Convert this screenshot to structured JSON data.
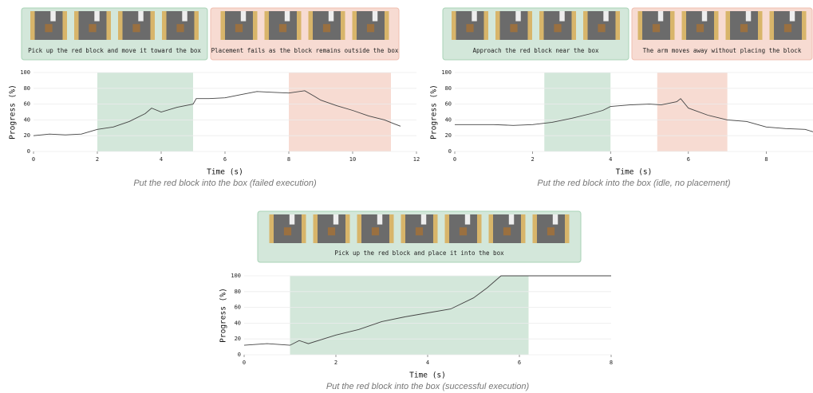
{
  "chart_data": [
    {
      "type": "line",
      "title": "Put the red block into the box (failed execution)",
      "x_label": "Time (s)",
      "y_label": "Progress (%)",
      "x": [
        0,
        0.5,
        1,
        1.5,
        2,
        2.5,
        3,
        3.5,
        3.7,
        4,
        4.5,
        5,
        5.1,
        5.5,
        6,
        6.5,
        7,
        7.5,
        8,
        8.5,
        8.8,
        9,
        9.5,
        10,
        10.5,
        11,
        11.3,
        11.5
      ],
      "series": [
        {
          "color": "#444444",
          "values": [
            20,
            22,
            21,
            22,
            28,
            31,
            38,
            48,
            55,
            50,
            56,
            60,
            67,
            67,
            68,
            72,
            76,
            75,
            74,
            77,
            70,
            65,
            58,
            52,
            45,
            40,
            35,
            32
          ]
        }
      ],
      "xlim": [
        0,
        12
      ],
      "ylim": [
        0,
        100
      ],
      "xticks": [
        0,
        2,
        4,
        6,
        8,
        10,
        12
      ],
      "yticks": [
        0,
        20,
        40,
        60,
        80,
        100
      ],
      "grid": true,
      "highlights": [
        {
          "start": 2,
          "end": 5,
          "color": "#d3e7da",
          "label": "Pick up the red block and move it toward the box"
        },
        {
          "start": 8,
          "end": 11.2,
          "color": "#f7dbd2",
          "label": "Placement fails as the block remains outside the box"
        }
      ]
    },
    {
      "type": "line",
      "title": "Put the red block into the box (idle, no placement)",
      "x_label": "Time (s)",
      "y_label": "Progress (%)",
      "x": [
        0,
        0.5,
        1,
        1.5,
        2,
        2.5,
        3,
        3.5,
        3.8,
        4,
        4.5,
        5,
        5.3,
        5.7,
        5.8,
        6,
        6.5,
        7,
        7.5,
        8,
        8.5,
        9,
        9.2
      ],
      "series": [
        {
          "color": "#444444",
          "values": [
            34,
            34,
            34,
            33,
            34,
            37,
            42,
            48,
            52,
            57,
            59,
            60,
            59,
            63,
            67,
            55,
            46,
            40,
            38,
            31,
            29,
            28,
            25
          ]
        }
      ],
      "xlim": [
        0,
        9.2
      ],
      "ylim": [
        0,
        100
      ],
      "xticks": [
        0,
        2,
        4,
        6,
        8
      ],
      "yticks": [
        0,
        20,
        40,
        60,
        80,
        100
      ],
      "grid": true,
      "highlights": [
        {
          "start": 2.3,
          "end": 4,
          "color": "#d3e7da",
          "label": "Approach the red block near the box"
        },
        {
          "start": 5.2,
          "end": 7,
          "color": "#f7dbd2",
          "label": "The arm moves away without placing the block"
        }
      ]
    },
    {
      "type": "line",
      "title": "Put the red block into the box (successful execution)",
      "x_label": "Time (s)",
      "y_label": "Progress (%)",
      "x": [
        0,
        0.5,
        1,
        1.2,
        1.4,
        2,
        2.5,
        3,
        3.5,
        4,
        4.5,
        5,
        5.3,
        5.5,
        5.6,
        6,
        7,
        8
      ],
      "series": [
        {
          "color": "#444444",
          "values": [
            12,
            14,
            12,
            18,
            14,
            25,
            32,
            42,
            48,
            53,
            58,
            72,
            85,
            95,
            100,
            100,
            100,
            100
          ]
        }
      ],
      "xlim": [
        0,
        8
      ],
      "ylim": [
        0,
        100
      ],
      "xticks": [
        0,
        2,
        4,
        6,
        8
      ],
      "yticks": [
        0,
        20,
        40,
        60,
        80,
        100
      ],
      "grid": true,
      "highlights": [
        {
          "start": 1,
          "end": 6.2,
          "color": "#d3e7da",
          "label": "Pick up the red block and place it into the box"
        }
      ]
    }
  ]
}
